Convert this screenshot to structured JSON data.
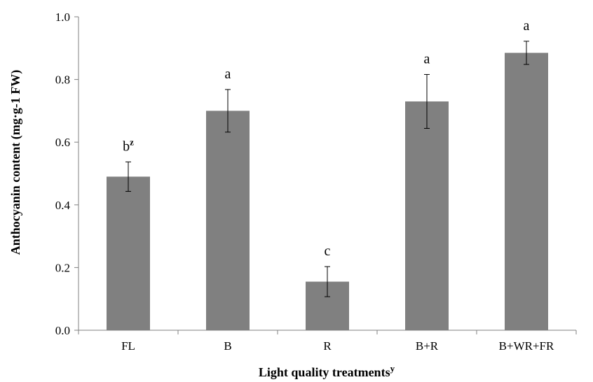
{
  "chart_data": {
    "type": "bar",
    "title": "",
    "xlabel": "Light quality treatments",
    "xlabel_superscript": "y",
    "ylabel": "Anthocyanin content (mg·g-1 FW)",
    "ylim": [
      0,
      1.0
    ],
    "yticks": [
      "0.0",
      "0.2",
      "0.4",
      "0.6",
      "0.8",
      "1.0"
    ],
    "categories": [
      "FL",
      "B",
      "R",
      "B+R",
      "B+WR+FR"
    ],
    "values": [
      0.49,
      0.7,
      0.155,
      0.73,
      0.885
    ],
    "errors": [
      0.047,
      0.068,
      0.048,
      0.086,
      0.037
    ],
    "significance": [
      "b",
      "a",
      "c",
      "a",
      "a"
    ],
    "significance_superscripts": [
      "z",
      "",
      "",
      "",
      ""
    ],
    "bar_color": "#808080",
    "axis_color": "#808080",
    "grid": false
  }
}
